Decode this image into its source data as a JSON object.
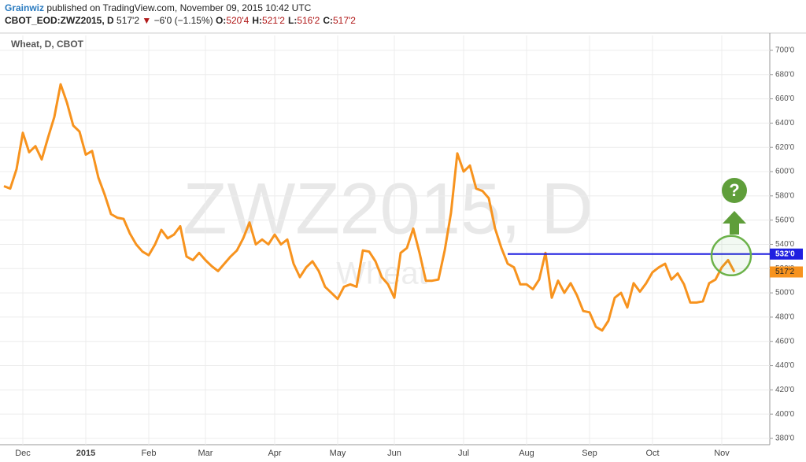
{
  "header": {
    "author": "Grainwiz",
    "published": "published on TradingView.com, November 09, 2015 10:42 UTC",
    "symbol": "CBOT_EOD:ZWZ2015, D",
    "price": "517'2",
    "direction": "▼",
    "change": "−6'0 (−1.15%)",
    "ohlc": [
      {
        "key": "O:",
        "value": "520'4"
      },
      {
        "key": "H:",
        "value": "521'2"
      },
      {
        "key": "L:",
        "value": "516'2"
      },
      {
        "key": "C:",
        "value": "517'2"
      }
    ]
  },
  "chart_data": {
    "type": "line",
    "title": "Wheat, D, CBOT",
    "watermark": "ZWZ2015, D",
    "watermark_sub": "Wheat",
    "annotation_icon": "?",
    "color": "#f7931e",
    "grid": true,
    "categories": [
      null,
      null,
      null,
      "Dec",
      null,
      null,
      null,
      null,
      null,
      null,
      null,
      null,
      null,
      "2015",
      null,
      null,
      null,
      null,
      null,
      null,
      null,
      null,
      null,
      "Feb",
      null,
      null,
      null,
      null,
      null,
      null,
      null,
      null,
      "Mar",
      null,
      null,
      null,
      null,
      null,
      null,
      null,
      null,
      null,
      null,
      "Apr",
      null,
      null,
      null,
      null,
      null,
      null,
      null,
      null,
      null,
      "May",
      null,
      null,
      null,
      null,
      null,
      null,
      null,
      null,
      "Jun",
      null,
      null,
      null,
      null,
      null,
      null,
      null,
      null,
      null,
      null,
      "Jul",
      null,
      null,
      null,
      null,
      null,
      null,
      null,
      null,
      null,
      "Aug",
      null,
      null,
      null,
      null,
      null,
      null,
      null,
      null,
      null,
      "Sep",
      null,
      null,
      null,
      null,
      null,
      null,
      null,
      null,
      null,
      "Oct",
      null,
      null,
      null,
      null,
      null,
      null,
      null,
      null,
      null,
      null,
      "Nov",
      null,
      null
    ],
    "values": [
      588,
      586,
      602,
      632,
      616,
      621,
      610,
      628,
      645,
      672,
      657,
      638,
      633,
      614,
      617,
      595,
      581,
      565,
      562,
      561,
      549,
      540,
      534,
      531,
      540,
      552,
      545,
      548,
      555,
      530,
      527,
      533,
      527,
      522,
      518,
      524,
      530,
      535,
      545,
      558,
      540,
      544,
      540,
      548,
      540,
      544,
      524,
      513,
      521,
      526,
      518,
      505,
      500,
      495,
      505,
      507,
      505,
      535,
      534,
      526,
      513,
      507,
      496,
      533,
      537,
      553,
      533,
      510,
      510,
      511,
      535,
      566,
      615,
      600,
      605,
      586,
      584,
      578,
      553,
      537,
      524,
      521,
      507,
      507,
      503,
      511,
      533,
      496,
      510,
      500,
      508,
      498,
      485,
      484,
      472,
      469,
      477,
      496,
      500,
      488,
      508,
      501,
      508,
      517,
      521,
      524,
      511,
      516,
      507,
      492,
      492,
      493,
      508,
      511,
      521,
      527,
      517.25
    ],
    "last_price_label": "517'2",
    "hline": {
      "value": 532,
      "label": "532'0",
      "color": "#1f1fe0",
      "start_index": 80
    },
    "ylim": [
      374.8,
      712.3
    ],
    "yticks": [
      {
        "value": 380,
        "label": "380'0"
      },
      {
        "value": 400,
        "label": "400'0"
      },
      {
        "value": 420,
        "label": "420'0"
      },
      {
        "value": 440,
        "label": "440'0"
      },
      {
        "value": 460,
        "label": "460'0"
      },
      {
        "value": 480,
        "label": "480'0"
      },
      {
        "value": 500,
        "label": "500'0"
      },
      {
        "value": 520,
        "label": "520'0"
      },
      {
        "value": 540,
        "label": "540'0"
      },
      {
        "value": 560,
        "label": "560'0"
      },
      {
        "value": 580,
        "label": "580'0"
      },
      {
        "value": 600,
        "label": "600'0"
      },
      {
        "value": 620,
        "label": "620'0"
      },
      {
        "value": 640,
        "label": "640'0"
      },
      {
        "value": 660,
        "label": "660'0"
      },
      {
        "value": 680,
        "label": "680'0"
      },
      {
        "value": 700,
        "label": "700'0"
      }
    ]
  }
}
